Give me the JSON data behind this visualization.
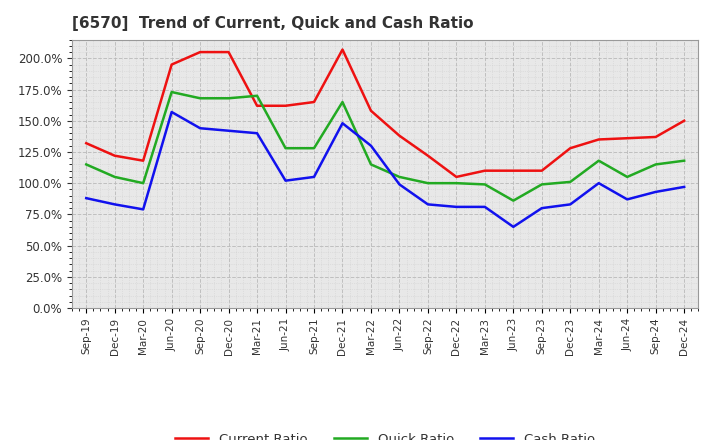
{
  "title": "[6570]  Trend of Current, Quick and Cash Ratio",
  "x_labels": [
    "Sep-19",
    "Dec-19",
    "Mar-20",
    "Jun-20",
    "Sep-20",
    "Dec-20",
    "Mar-21",
    "Jun-21",
    "Sep-21",
    "Dec-21",
    "Mar-22",
    "Jun-22",
    "Sep-22",
    "Dec-22",
    "Mar-23",
    "Jun-23",
    "Sep-23",
    "Dec-23",
    "Mar-24",
    "Jun-24",
    "Sep-24",
    "Dec-24"
  ],
  "current_ratio": [
    132,
    122,
    118,
    195,
    205,
    205,
    162,
    162,
    165,
    207,
    158,
    138,
    122,
    105,
    110,
    110,
    110,
    128,
    135,
    136,
    137,
    150
  ],
  "quick_ratio": [
    115,
    105,
    100,
    173,
    168,
    168,
    170,
    128,
    128,
    165,
    115,
    105,
    100,
    100,
    99,
    86,
    99,
    101,
    118,
    105,
    115,
    118
  ],
  "cash_ratio": [
    88,
    83,
    79,
    157,
    144,
    142,
    140,
    102,
    105,
    148,
    130,
    99,
    83,
    81,
    81,
    65,
    80,
    83,
    100,
    87,
    93,
    97
  ],
  "current_color": "#ee1111",
  "quick_color": "#22aa22",
  "cash_color": "#1111ee",
  "ylim": [
    0,
    215
  ],
  "yticks": [
    0,
    25,
    50,
    75,
    100,
    125,
    150,
    175,
    200
  ],
  "plot_bg_color": "#e8e8e8",
  "background_color": "#ffffff",
  "grid_major_color": "#bbbbbb",
  "grid_minor_color": "#cccccc",
  "title_color": "#333333",
  "tick_color": "#333333",
  "legend_labels": [
    "Current Ratio",
    "Quick Ratio",
    "Cash Ratio"
  ]
}
